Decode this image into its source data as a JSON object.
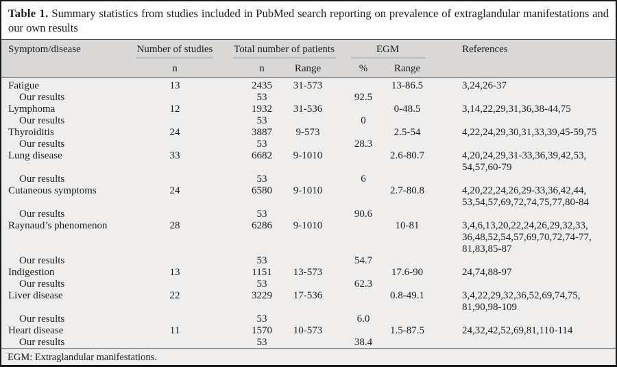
{
  "title": {
    "label": "Table 1.",
    "text": "Summary statistics from studies included in PubMed search reporting on prevalence of extraglandular manifestations and our own results"
  },
  "colors": {
    "outer_border": "#161616",
    "caption_bg": "#fdfdfd",
    "header_bg": "#d9d8d6",
    "body_bg": "#efeeec",
    "rule_dark": "#4a4a4a",
    "rule_light": "#7a7a7a"
  },
  "table": {
    "columns": {
      "symptom": "Symptom/disease",
      "studies_group": "Number of studies",
      "patients_group": "Total number of patients",
      "egm_group": "EGM",
      "references": "References",
      "studies_n": "n",
      "patients_n": "n",
      "patients_range": "Range",
      "egm_pct": "%",
      "egm_range": "Range"
    },
    "rows": [
      {
        "label": "Fatigue",
        "indent": false,
        "studies_n": "13",
        "patients_n": "2435",
        "patients_range": "31-573",
        "egm_pct": "",
        "egm_range": "13-86.5",
        "refs": "3,24,26-37"
      },
      {
        "label": "Our results",
        "indent": true,
        "studies_n": "",
        "patients_n": "53",
        "patients_range": "",
        "egm_pct": "92.5",
        "egm_range": "",
        "refs": ""
      },
      {
        "label": "Lymphoma",
        "indent": false,
        "studies_n": "12",
        "patients_n": "1932",
        "patients_range": "31-536",
        "egm_pct": "",
        "egm_range": "0-48.5",
        "refs": "3,14,22,29,31,36,38-44,75"
      },
      {
        "label": "Our results",
        "indent": true,
        "studies_n": "",
        "patients_n": "53",
        "patients_range": "",
        "egm_pct": "0",
        "egm_range": "",
        "refs": ""
      },
      {
        "label": "Thyroiditis",
        "indent": false,
        "studies_n": "24",
        "patients_n": "3887",
        "patients_range": "9-573",
        "egm_pct": "",
        "egm_range": "2.5-54",
        "refs": "4,22,24,29,30,31,33,39,45-59,75"
      },
      {
        "label": "Our results",
        "indent": true,
        "studies_n": "",
        "patients_n": "53",
        "patients_range": "",
        "egm_pct": "28.3",
        "egm_range": "",
        "refs": ""
      },
      {
        "label": "Lung disease",
        "indent": false,
        "studies_n": "33",
        "patients_n": "6682",
        "patients_range": "9-1010",
        "egm_pct": "",
        "egm_range": "2.6-80.7",
        "refs": "4,20,24,29,31-33,36,39,42,53,\n54,57,60-79"
      },
      {
        "label": "Our results",
        "indent": true,
        "studies_n": "",
        "patients_n": "53",
        "patients_range": "",
        "egm_pct": "6",
        "egm_range": "",
        "refs": ""
      },
      {
        "label": "Cutaneous symptoms",
        "indent": false,
        "studies_n": "24",
        "patients_n": "6580",
        "patients_range": "9-1010",
        "egm_pct": "",
        "egm_range": "2.7-80.8",
        "refs": "4,20,22,24,26,29-33,36,42,44,\n53,54,57,69,72,74,75,77,80-84"
      },
      {
        "label": "Our results",
        "indent": true,
        "studies_n": "",
        "patients_n": "53",
        "patients_range": "",
        "egm_pct": "90.6",
        "egm_range": "",
        "refs": ""
      },
      {
        "label": "Raynaud’s phenomenon",
        "indent": false,
        "studies_n": "28",
        "patients_n": "6286",
        "patients_range": "9-1010",
        "egm_pct": "",
        "egm_range": "10-81",
        "refs": "3,4,6,13,20,22,24,26,29,32,33,\n36,48,52,54,57,69,70,72,74-77,\n81,83,85-87"
      },
      {
        "label": "Our results",
        "indent": true,
        "studies_n": "",
        "patients_n": "53",
        "patients_range": "",
        "egm_pct": "54.7",
        "egm_range": "",
        "refs": ""
      },
      {
        "label": "Indigestion",
        "indent": false,
        "studies_n": "13",
        "patients_n": "1151",
        "patients_range": "13-573",
        "egm_pct": "",
        "egm_range": "17.6-90",
        "refs": "24,74,88-97"
      },
      {
        "label": "Our results",
        "indent": true,
        "studies_n": "",
        "patients_n": "53",
        "patients_range": "",
        "egm_pct": "62.3",
        "egm_range": "",
        "refs": ""
      },
      {
        "label": "Liver disease",
        "indent": false,
        "studies_n": "22",
        "patients_n": "3229",
        "patients_range": "17-536",
        "egm_pct": "",
        "egm_range": "0.8-49.1",
        "refs": "3,4,22,29,32,36,52,69,74,75,\n81,90,98-109"
      },
      {
        "label": "Our results",
        "indent": true,
        "studies_n": "",
        "patients_n": "53",
        "patients_range": "",
        "egm_pct": "6.0",
        "egm_range": "",
        "refs": ""
      },
      {
        "label": "Heart disease",
        "indent": false,
        "studies_n": "11",
        "patients_n": "1570",
        "patients_range": "10-573",
        "egm_pct": "",
        "egm_range": "1.5-87.5",
        "refs": "24,32,42,52,69,81,110-114"
      },
      {
        "label": "Our results",
        "indent": true,
        "studies_n": "",
        "patients_n": "53",
        "patients_range": "",
        "egm_pct": "38.4",
        "egm_range": "",
        "refs": ""
      }
    ]
  },
  "footnote": "EGM: Extraglandular manifestations."
}
